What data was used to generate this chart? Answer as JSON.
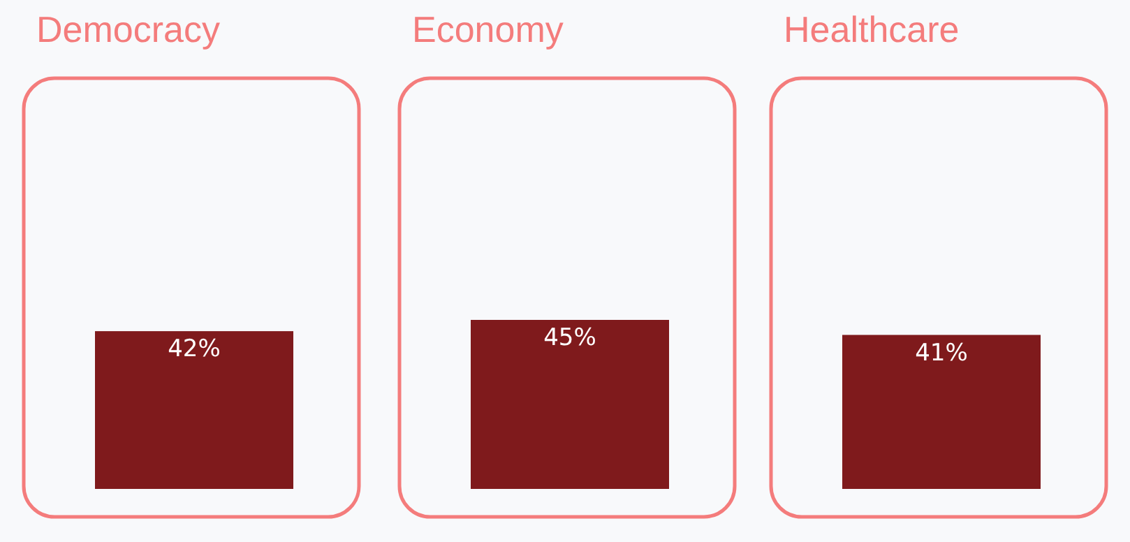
{
  "chart_data": {
    "type": "bar",
    "categories": [
      "Democracy",
      "Economy",
      "Healthcare"
    ],
    "values": [
      42,
      45,
      41
    ],
    "color": "#7f1a1c",
    "data_labels": true,
    "value_labels": [
      "42%",
      "45%",
      "41%"
    ]
  }
}
